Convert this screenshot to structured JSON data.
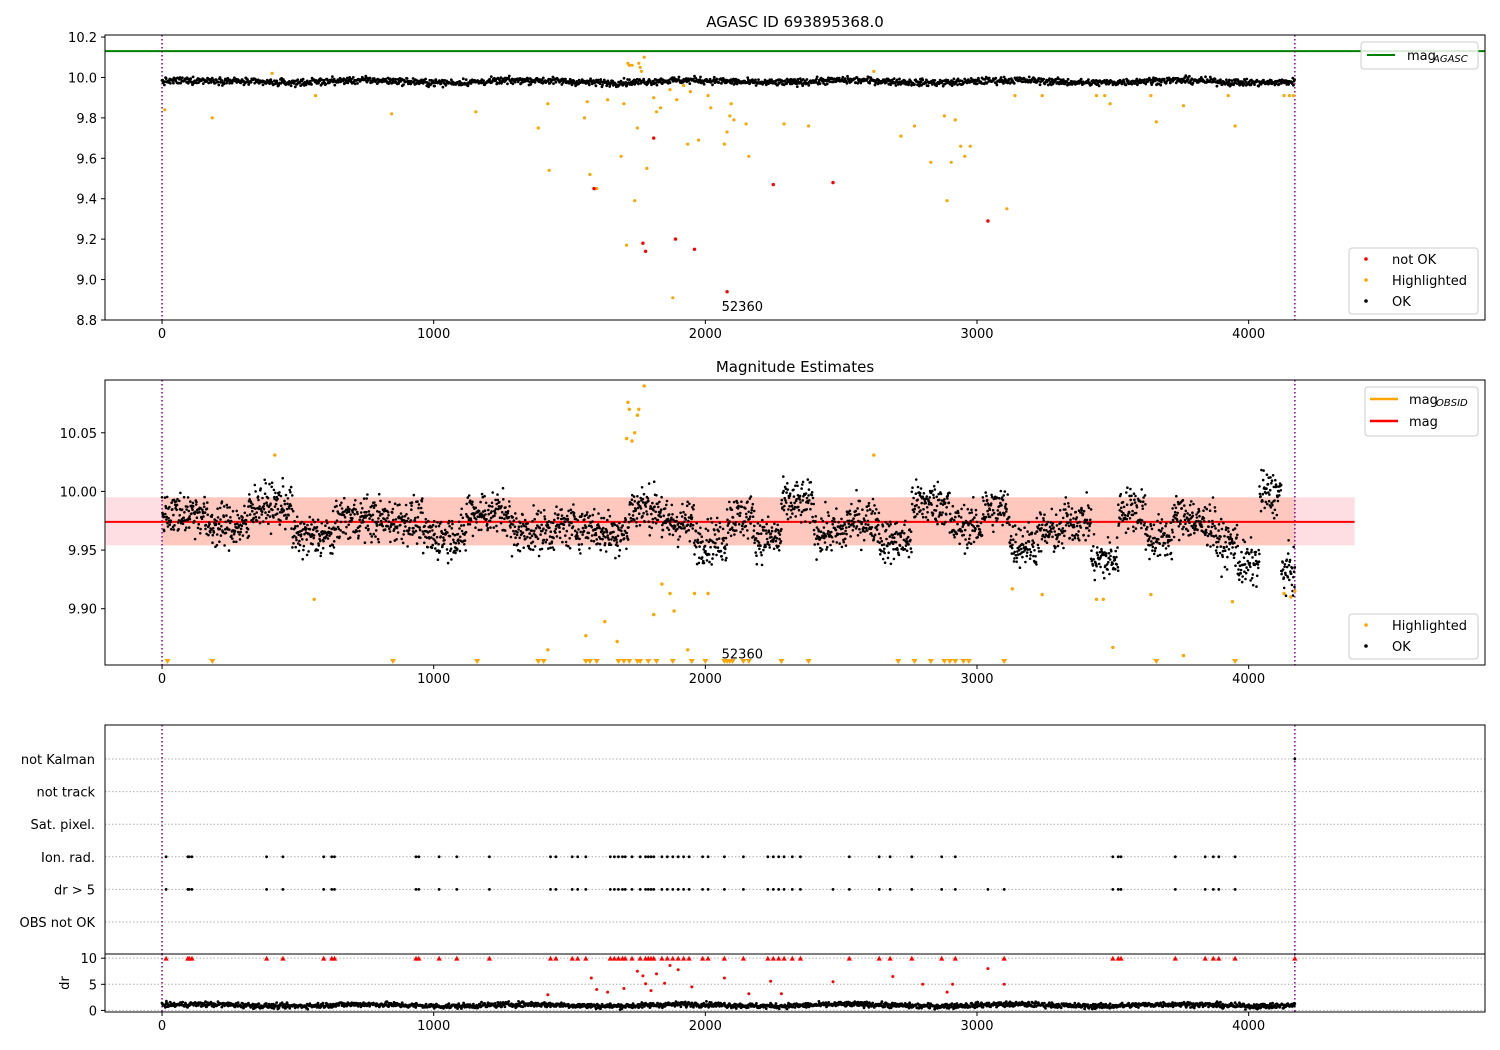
{
  "chart_data": [
    {
      "type": "scatter",
      "title": "AGASC ID 693895368.0",
      "xlabel": "",
      "ylabel": "",
      "xlim": [
        -210,
        4870
      ],
      "ylim": [
        8.8,
        10.21
      ],
      "xticks": [
        0,
        1000,
        2000,
        3000,
        4000
      ],
      "yticks": [
        8.8,
        9.0,
        9.2,
        9.4,
        9.6,
        9.8,
        10.0,
        10.2
      ],
      "ytick_labels": [
        "8.8",
        "9.0",
        "9.2",
        "9.4",
        "9.6",
        "9.8",
        "10.0",
        "10.2"
      ],
      "vlines": [
        0,
        4170
      ],
      "hline": {
        "name": "mag_AGASC",
        "value": 10.13
      },
      "legend_top": {
        "position": "upper right",
        "entries": [
          {
            "label_main": "mag",
            "label_sub": "AGASC",
            "color": "#008000"
          }
        ]
      },
      "legend_bottom": {
        "position": "lower right",
        "entries": [
          {
            "label": "not OK",
            "color": "#ff0000"
          },
          {
            "label": "Highlighted",
            "color": "#ffa500"
          },
          {
            "label": "OK",
            "color": "#000000"
          }
        ]
      },
      "annotation": {
        "text": "52360",
        "x": 2060,
        "y": 8.87
      },
      "ok_band": {
        "x_max": 4170,
        "mean": 9.98,
        "scatter": 0.012
      },
      "highlighted_points": [
        [
          10,
          9.84
        ],
        [
          185,
          9.8
        ],
        [
          405,
          10.02
        ],
        [
          565,
          9.91
        ],
        [
          845,
          9.82
        ],
        [
          1155,
          9.83
        ],
        [
          1385,
          9.75
        ],
        [
          1420,
          9.87
        ],
        [
          1425,
          9.54
        ],
        [
          1555,
          9.8
        ],
        [
          1565,
          9.88
        ],
        [
          1575,
          9.52
        ],
        [
          1600,
          9.45
        ],
        [
          1640,
          9.89
        ],
        [
          1690,
          9.61
        ],
        [
          1700,
          9.87
        ],
        [
          1710,
          9.17
        ],
        [
          1715,
          10.07
        ],
        [
          1720,
          10.06
        ],
        [
          1730,
          10.06
        ],
        [
          1740,
          9.39
        ],
        [
          1750,
          9.75
        ],
        [
          1755,
          10.07
        ],
        [
          1760,
          10.05
        ],
        [
          1765,
          10.03
        ],
        [
          1775,
          10.1
        ],
        [
          1785,
          9.55
        ],
        [
          1810,
          9.9
        ],
        [
          1820,
          9.83
        ],
        [
          1835,
          9.85
        ],
        [
          1870,
          9.94
        ],
        [
          1880,
          8.91
        ],
        [
          1895,
          9.89
        ],
        [
          1920,
          9.96
        ],
        [
          1935,
          9.67
        ],
        [
          1945,
          9.93
        ],
        [
          1975,
          9.69
        ],
        [
          2010,
          9.91
        ],
        [
          2020,
          9.85
        ],
        [
          2070,
          9.67
        ],
        [
          2080,
          9.73
        ],
        [
          2090,
          9.81
        ],
        [
          2095,
          9.87
        ],
        [
          2105,
          9.79
        ],
        [
          2150,
          9.77
        ],
        [
          2160,
          9.61
        ],
        [
          2290,
          9.77
        ],
        [
          2380,
          9.76
        ],
        [
          2620,
          10.03
        ],
        [
          2720,
          9.71
        ],
        [
          2770,
          9.76
        ],
        [
          2830,
          9.58
        ],
        [
          2880,
          9.81
        ],
        [
          2890,
          9.39
        ],
        [
          2905,
          9.58
        ],
        [
          2920,
          9.79
        ],
        [
          2940,
          9.66
        ],
        [
          2955,
          9.61
        ],
        [
          2975,
          9.66
        ],
        [
          3110,
          9.35
        ],
        [
          3140,
          9.91
        ],
        [
          3240,
          9.91
        ],
        [
          3440,
          9.91
        ],
        [
          3470,
          9.91
        ],
        [
          3490,
          9.87
        ],
        [
          3640,
          9.91
        ],
        [
          3660,
          9.78
        ],
        [
          3760,
          9.86
        ],
        [
          3925,
          9.91
        ],
        [
          3950,
          9.76
        ],
        [
          4130,
          9.91
        ],
        [
          4150,
          9.91
        ],
        [
          4165,
          9.91
        ]
      ],
      "not_ok_points": [
        [
          1590,
          9.45
        ],
        [
          1770,
          9.18
        ],
        [
          1780,
          9.14
        ],
        [
          1810,
          9.7
        ],
        [
          1890,
          9.2
        ],
        [
          1960,
          9.15
        ],
        [
          2080,
          8.94
        ],
        [
          2250,
          9.47
        ],
        [
          2470,
          9.48
        ],
        [
          3040,
          9.29
        ]
      ]
    },
    {
      "type": "scatter",
      "title": "Magnitude Estimates",
      "xlabel": "",
      "ylabel": "",
      "xlim": [
        -210,
        4870
      ],
      "ylim": [
        9.852,
        10.095
      ],
      "xticks": [
        0,
        1000,
        2000,
        3000,
        4000
      ],
      "yticks": [
        9.9,
        9.95,
        10.0,
        10.05
      ],
      "ytick_labels": [
        "9.90",
        "9.95",
        "10.00",
        "10.05"
      ],
      "vlines": [
        0,
        4170
      ],
      "mean_line": {
        "name": "mag",
        "value": 9.974,
        "x_range": [
          0,
          4390
        ]
      },
      "obsid_band": {
        "name": "mag_OBSID",
        "low": 9.954,
        "high": 9.995,
        "x_range": [
          0,
          4390
        ]
      },
      "legend_top": {
        "position": "upper right",
        "entries": [
          {
            "label_main": "mag",
            "label_sub": "OBSID",
            "color": "#ffa500"
          },
          {
            "label": "mag",
            "color": "#ff0000"
          }
        ]
      },
      "legend_bottom": {
        "position": "lower right",
        "entries": [
          {
            "label": "Highlighted",
            "color": "#ffa500"
          },
          {
            "label": "OK",
            "color": "#000000"
          }
        ]
      },
      "annotation": {
        "text": "52360",
        "x": 2060,
        "y": 9.862
      },
      "highlighted_points": [
        [
          415,
          10.031
        ],
        [
          560,
          9.908
        ],
        [
          1420,
          9.865
        ],
        [
          1560,
          9.877
        ],
        [
          1630,
          9.889
        ],
        [
          1675,
          9.872
        ],
        [
          1710,
          10.045
        ],
        [
          1715,
          10.076
        ],
        [
          1720,
          10.07
        ],
        [
          1730,
          10.043
        ],
        [
          1740,
          10.05
        ],
        [
          1750,
          10.065
        ],
        [
          1755,
          10.07
        ],
        [
          1775,
          10.09
        ],
        [
          1810,
          9.895
        ],
        [
          1840,
          9.921
        ],
        [
          1870,
          9.913
        ],
        [
          1885,
          9.898
        ],
        [
          1935,
          9.865
        ],
        [
          1960,
          9.913
        ],
        [
          2010,
          9.913
        ],
        [
          2620,
          10.031
        ],
        [
          3130,
          9.917
        ],
        [
          3240,
          9.912
        ],
        [
          3440,
          9.908
        ],
        [
          3465,
          9.908
        ],
        [
          3500,
          9.867
        ],
        [
          3640,
          9.912
        ],
        [
          3760,
          9.86
        ],
        [
          3940,
          9.906
        ],
        [
          4130,
          9.913
        ],
        [
          4155,
          9.91
        ],
        [
          4170,
          9.915
        ]
      ],
      "offscale_markers": [
        20,
        185,
        850,
        1160,
        1385,
        1405,
        1560,
        1575,
        1600,
        1680,
        1700,
        1720,
        1750,
        1760,
        1790,
        1820,
        1880,
        1950,
        2000,
        2070,
        2080,
        2090,
        2100,
        2140,
        2160,
        2280,
        2380,
        2710,
        2770,
        2830,
        2880,
        2900,
        2920,
        2950,
        2970,
        3100,
        3660,
        3950
      ],
      "segments": [
        [
          0,
          160,
          9.982
        ],
        [
          160,
          320,
          9.971
        ],
        [
          320,
          480,
          9.988
        ],
        [
          480,
          640,
          9.962
        ],
        [
          640,
          800,
          9.977
        ],
        [
          800,
          960,
          9.975
        ],
        [
          960,
          1120,
          9.962
        ],
        [
          1120,
          1280,
          9.982
        ],
        [
          1280,
          1440,
          9.966
        ],
        [
          1440,
          1600,
          9.97
        ],
        [
          1600,
          1720,
          9.965
        ],
        [
          1720,
          1840,
          9.986
        ],
        [
          1840,
          1960,
          9.973
        ],
        [
          1960,
          2080,
          9.958
        ],
        [
          2080,
          2180,
          9.978
        ],
        [
          2180,
          2280,
          9.96
        ],
        [
          2280,
          2400,
          9.99
        ],
        [
          2400,
          2520,
          9.965
        ],
        [
          2520,
          2640,
          9.975
        ],
        [
          2640,
          2760,
          9.958
        ],
        [
          2760,
          2900,
          9.99
        ],
        [
          2900,
          3020,
          9.97
        ],
        [
          3020,
          3120,
          9.985
        ],
        [
          3120,
          3220,
          9.955
        ],
        [
          3220,
          3320,
          9.965
        ],
        [
          3320,
          3420,
          9.975
        ],
        [
          3420,
          3520,
          9.942
        ],
        [
          3520,
          3620,
          9.985
        ],
        [
          3620,
          3720,
          9.96
        ],
        [
          3720,
          3800,
          9.978
        ],
        [
          3800,
          3880,
          9.972
        ],
        [
          3880,
          3960,
          9.955
        ],
        [
          3960,
          4040,
          9.938
        ],
        [
          4040,
          4120,
          9.998
        ],
        [
          4120,
          4170,
          9.932
        ]
      ]
    },
    {
      "type": "scatter",
      "title": "",
      "xlabel": "",
      "ylabel": "",
      "xlim": [
        -210,
        4870
      ],
      "vlines": [
        0,
        4170
      ],
      "flag_rows": [
        "not Kalman",
        "not track",
        "Sat. pixel.",
        "Ion. rad.",
        "dr > 5",
        "OBS not OK"
      ],
      "flag_points": {
        "Ion. rad.": [
          15,
          95,
          100,
          110,
          385,
          445,
          595,
          625,
          635,
          935,
          945,
          1020,
          1085,
          1205,
          1430,
          1450,
          1510,
          1530,
          1560,
          1650,
          1665,
          1680,
          1695,
          1705,
          1730,
          1760,
          1780,
          1790,
          1800,
          1810,
          1840,
          1860,
          1880,
          1900,
          1920,
          1940,
          1990,
          2010,
          2070,
          2140,
          2230,
          2250,
          2270,
          2290,
          2320,
          2350,
          2530,
          2640,
          2680,
          2760,
          2870,
          2920,
          3500,
          3520,
          3530,
          3730,
          3840,
          3870,
          3890,
          3950
        ],
        "dr > 5": [
          15,
          95,
          100,
          110,
          385,
          445,
          595,
          625,
          635,
          935,
          945,
          1020,
          1085,
          1205,
          1430,
          1450,
          1510,
          1530,
          1560,
          1650,
          1665,
          1680,
          1695,
          1705,
          1730,
          1760,
          1780,
          1790,
          1800,
          1810,
          1840,
          1860,
          1880,
          1900,
          1920,
          1940,
          1990,
          2010,
          2070,
          2140,
          2230,
          2250,
          2270,
          2290,
          2320,
          2350,
          2470,
          2530,
          2640,
          2680,
          2760,
          2870,
          2920,
          3040,
          3100,
          3500,
          3520,
          3530,
          3730,
          3840,
          3870,
          3890,
          3950
        ],
        "not Kalman": [
          4170
        ]
      }
    },
    {
      "type": "scatter",
      "title": "",
      "xlabel": "",
      "ylabel": "dr",
      "xlim": [
        -210,
        4870
      ],
      "ylim": [
        -0.3,
        10.8
      ],
      "xticks": [
        0,
        1000,
        2000,
        3000,
        4000
      ],
      "yticks": [
        0,
        5,
        10
      ],
      "ytick_labels": [
        "0",
        "5",
        "10"
      ],
      "vlines": [
        0,
        4170
      ],
      "ok_band": {
        "x_max": 4170,
        "mean": 1.0,
        "scatter": 0.35
      },
      "capped_markers": [
        15,
        95,
        100,
        110,
        385,
        445,
        595,
        625,
        635,
        935,
        945,
        1020,
        1085,
        1205,
        1430,
        1450,
        1510,
        1530,
        1560,
        1650,
        1665,
        1680,
        1695,
        1705,
        1730,
        1760,
        1780,
        1790,
        1800,
        1810,
        1840,
        1860,
        1880,
        1900,
        1920,
        1940,
        1990,
        2010,
        2070,
        2140,
        2230,
        2250,
        2270,
        2290,
        2320,
        2350,
        2530,
        2640,
        2680,
        2760,
        2870,
        2920,
        3100,
        3500,
        3520,
        3530,
        3730,
        3840,
        3870,
        3890,
        3950,
        4170
      ],
      "red_points": [
        [
          1420,
          3
        ],
        [
          1580,
          6.2
        ],
        [
          1600,
          4
        ],
        [
          1640,
          3.5
        ],
        [
          1700,
          4.2
        ],
        [
          1750,
          7.5
        ],
        [
          1770,
          6.6
        ],
        [
          1780,
          5.1
        ],
        [
          1800,
          3.8
        ],
        [
          1820,
          7
        ],
        [
          1850,
          5.2
        ],
        [
          1870,
          8.6
        ],
        [
          1900,
          7.8
        ],
        [
          1950,
          4.5
        ],
        [
          2070,
          6.2
        ],
        [
          2160,
          3.2
        ],
        [
          2240,
          5.6
        ],
        [
          2280,
          3.2
        ],
        [
          2470,
          5.5
        ],
        [
          2690,
          6.5
        ],
        [
          2800,
          5
        ],
        [
          2890,
          3.5
        ],
        [
          2910,
          5
        ],
        [
          3040,
          8
        ],
        [
          3100,
          5
        ]
      ]
    }
  ]
}
